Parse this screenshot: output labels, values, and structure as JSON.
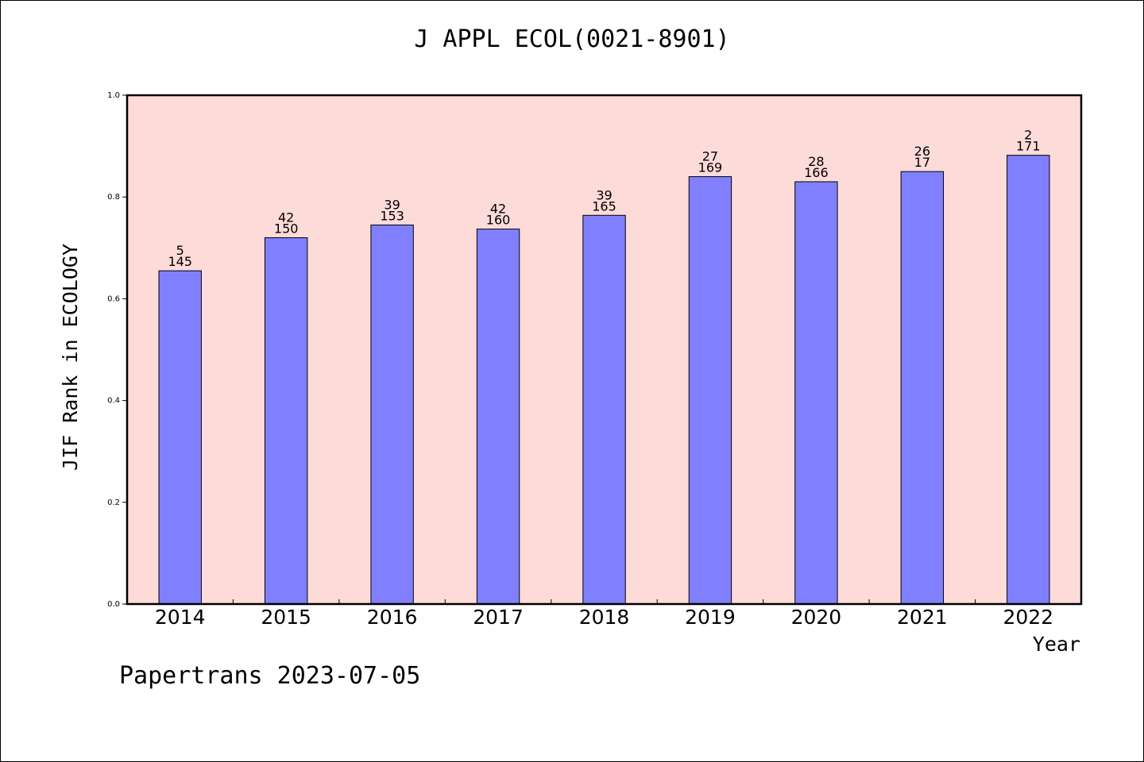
{
  "title": "J APPL ECOL(0021-8901)",
  "footer": "Papertrans 2023-07-05",
  "colors": {
    "plot_bg": "#fddbd8",
    "bar": "#8080ff"
  },
  "chart_data": {
    "type": "bar",
    "title": "J APPL ECOL(0021-8901)",
    "xlabel": "Year",
    "ylabel": "JIF Rank in ECOLOGY",
    "ylim": [
      0,
      1.0
    ],
    "yticks": [
      "0.0",
      "0.2",
      "0.4",
      "0.6",
      "0.8",
      "1.0"
    ],
    "grid": false,
    "categories": [
      "2014",
      "2015",
      "2016",
      "2017",
      "2018",
      "2019",
      "2020",
      "2021",
      "2022"
    ],
    "values": [
      0.655,
      0.72,
      0.745,
      0.737,
      0.764,
      0.84,
      0.83,
      0.85,
      0.882
    ],
    "rank_labels": [
      "5",
      "42",
      "39",
      "42",
      "39",
      "27",
      "28",
      "26",
      "2"
    ],
    "total_labels": [
      "145",
      "150",
      "153",
      "160",
      "165",
      "169",
      "166",
      "17",
      "171"
    ]
  }
}
